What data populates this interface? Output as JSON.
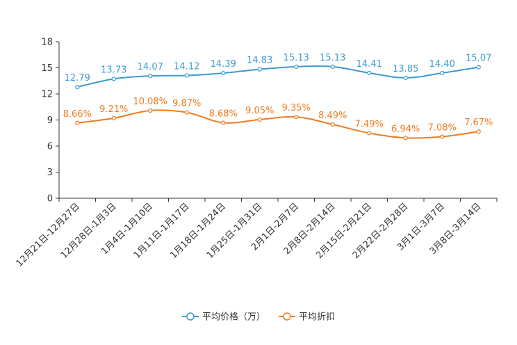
{
  "chart_data": {
    "type": "line",
    "categories": [
      "12月21日-12月27日",
      "12月28日-1月3日",
      "1月4日-1月10日",
      "1月11日-1月17日",
      "1月18日-1月24日",
      "1月25日-1月31日",
      "2月1日-2月7日",
      "2月8日-2月14日",
      "2月15日-2月21日",
      "2月22日-2月28日",
      "3月1日-3月7日",
      "3月8日-3月14日"
    ],
    "ylim": [
      0,
      18
    ],
    "yticks": [
      0,
      3,
      6,
      9,
      12,
      15,
      18
    ],
    "series": [
      {
        "name": "平均价格（万）",
        "color": "#3a9bd0",
        "values": [
          12.79,
          13.73,
          14.07,
          14.12,
          14.39,
          14.83,
          15.13,
          15.13,
          14.41,
          13.85,
          14.4,
          15.07
        ],
        "labels": [
          "12.79",
          "13.73",
          "14.07",
          "14.12",
          "14.39",
          "14.83",
          "15.13",
          "15.13",
          "14.41",
          "13.85",
          "14.40",
          "15.07"
        ]
      },
      {
        "name": "平均折扣",
        "color": "#f07b1e",
        "values": [
          8.66,
          9.21,
          10.08,
          9.87,
          8.68,
          9.05,
          9.35,
          8.49,
          7.49,
          6.94,
          7.08,
          7.67
        ],
        "labels": [
          "8.66%",
          "9.21%",
          "10.08%",
          "9.87%",
          "8.68%",
          "9.05%",
          "9.35%",
          "8.49%",
          "7.49%",
          "6.94%",
          "7.08%",
          "7.67%"
        ]
      }
    ],
    "legend_position": "bottom-center"
  }
}
